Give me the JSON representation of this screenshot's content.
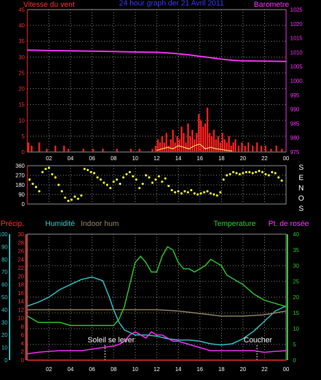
{
  "chart_data": [
    {
      "type": "line",
      "title": "24 hour graph der  21 Avril 2011",
      "left_label": "Vitesse du vent",
      "right_label": "Barometre",
      "colors": {
        "left": "#ff3030",
        "title": "#3a3aff",
        "right": "#ff33ff",
        "grid": "#9a9a9a"
      },
      "x_ticks": [
        "02",
        "04",
        "06",
        "08",
        "10",
        "12",
        "14",
        "16",
        "18",
        "20",
        "22",
        "00"
      ],
      "y_left_ticks": [
        0,
        5,
        10,
        15,
        20,
        25,
        30,
        35,
        40,
        45
      ],
      "y_left_lim": [
        0,
        45
      ],
      "y_right_ticks": [
        975,
        980,
        985,
        990,
        995,
        1000,
        1005,
        1010,
        1015,
        1020,
        1025
      ],
      "y_right_lim": [
        975,
        1025
      ],
      "series": [
        {
          "name": "Barometre",
          "axis": "right",
          "color": "#ff33ff",
          "x": [
            0,
            2,
            4,
            6,
            8,
            10,
            12,
            13,
            14,
            15,
            16,
            17,
            18,
            19,
            20,
            22,
            24
          ],
          "y": [
            1010.8,
            1010.6,
            1010.5,
            1010.4,
            1010.3,
            1010.1,
            1010.0,
            1009.8,
            1009.5,
            1009.1,
            1008.6,
            1008.1,
            1007.6,
            1007.2,
            1007.0,
            1006.9,
            1006.8
          ]
        },
        {
          "name": "Vitesse du vent",
          "axis": "left",
          "color": "#ff2020",
          "style": "bars",
          "x": [
            0.1,
            0.4,
            1.1,
            1.8,
            2.6,
            3.4,
            3.8,
            5.2,
            6.1,
            7.0,
            8.3,
            9.6,
            10.4,
            11.6,
            11.9,
            12.1,
            12.3,
            12.5,
            12.7,
            12.9,
            13.1,
            13.3,
            13.5,
            13.7,
            13.9,
            14.1,
            14.3,
            14.5,
            14.7,
            14.9,
            15.1,
            15.3,
            15.5,
            15.7,
            15.9,
            16.1,
            16.3,
            16.5,
            16.7,
            16.9,
            17.1,
            17.3,
            17.5,
            17.7,
            17.9,
            18.1,
            18.3,
            18.5,
            18.7,
            18.9,
            19.1,
            19.3,
            19.6,
            19.9,
            20.2,
            20.5,
            20.9,
            21.3,
            21.7,
            22.1,
            22.6,
            23.1,
            23.6
          ],
          "y": [
            3,
            2,
            3,
            1,
            2,
            2,
            1,
            1,
            1,
            1,
            1,
            1,
            1,
            1,
            2,
            4,
            3,
            5,
            3,
            6,
            2,
            4,
            7,
            3,
            5,
            4,
            8,
            6,
            3,
            9,
            5,
            7,
            4,
            6,
            12,
            10,
            8,
            9,
            14,
            6,
            5,
            7,
            4,
            5,
            3,
            6,
            4,
            3,
            5,
            2,
            3,
            4,
            2,
            3,
            2,
            3,
            2,
            3,
            2,
            2,
            1,
            2,
            1
          ]
        },
        {
          "name": "Rafales",
          "axis": "left",
          "color": "#ffff66",
          "x": [
            12.0,
            12.5,
            13.0,
            13.5,
            14.0,
            14.5,
            15.0,
            15.5,
            16.0,
            16.5,
            17.0,
            17.5,
            18.0,
            18.5,
            19.0
          ],
          "y": [
            0.5,
            1.0,
            1.5,
            1.0,
            2.0,
            1.5,
            1.0,
            2.0,
            2.5,
            1.0,
            1.5,
            1.0,
            0.8,
            0.5,
            0.3
          ]
        }
      ]
    },
    {
      "type": "scatter",
      "right_label": [
        "S",
        "E",
        "N",
        "O",
        "S"
      ],
      "colors": {
        "points": "#ffff33",
        "axis": "#ff3030",
        "grid": "#9a9a9a"
      },
      "x_ticks": [
        "02",
        "04",
        "06",
        "08",
        "10",
        "12",
        "14",
        "16",
        "18",
        "20",
        "22",
        "00"
      ],
      "y_ticks": [
        0,
        90,
        180,
        270,
        360
      ],
      "y_lim": [
        0,
        360
      ],
      "series": [
        {
          "name": "direction",
          "color": "#ffff33",
          "x": [
            0.2,
            0.5,
            0.8,
            1.1,
            1.4,
            1.7,
            2.0,
            2.3,
            2.6,
            2.9,
            3.2,
            3.5,
            3.8,
            4.1,
            4.4,
            4.7,
            5.0,
            5.3,
            5.6,
            5.9,
            6.2,
            6.5,
            6.8,
            7.1,
            7.4,
            7.7,
            8.0,
            8.3,
            8.6,
            8.9,
            9.2,
            9.5,
            9.8,
            10.1,
            10.4,
            10.7,
            11.0,
            11.3,
            11.6,
            11.9,
            12.2,
            12.5,
            12.8,
            13.1,
            13.4,
            13.7,
            14.0,
            14.3,
            14.6,
            14.9,
            15.2,
            15.5,
            15.8,
            16.1,
            16.4,
            16.7,
            17.0,
            17.3,
            17.6,
            17.9,
            18.2,
            18.5,
            18.8,
            19.1,
            19.4,
            19.7,
            20.0,
            20.3,
            20.6,
            20.9,
            21.2,
            21.5,
            21.8,
            22.1,
            22.4,
            22.7,
            23.0,
            23.3,
            23.6
          ],
          "y": [
            230,
            190,
            160,
            120,
            300,
            330,
            340,
            280,
            250,
            180,
            120,
            60,
            30,
            40,
            70,
            50,
            80,
            330,
            320,
            300,
            290,
            250,
            230,
            200,
            180,
            150,
            210,
            230,
            190,
            250,
            280,
            300,
            260,
            230,
            150,
            190,
            270,
            250,
            200,
            230,
            260,
            210,
            240,
            170,
            130,
            110,
            120,
            100,
            120,
            110,
            130,
            100,
            90,
            100,
            110,
            120,
            100,
            90,
            80,
            110,
            230,
            270,
            280,
            300,
            290,
            280,
            290,
            300,
            300,
            290,
            300,
            310,
            300,
            280,
            270,
            300,
            290,
            250,
            220
          ]
        }
      ]
    },
    {
      "type": "line",
      "labels": {
        "precip": "Précip.",
        "humidity": "Humidité",
        "indoor_hum": "Indoor hum",
        "temperature": "Temperature",
        "dew_point": "Pt. de rosée"
      },
      "colors": {
        "precip": "#ff3030",
        "humidity": "#33cccc",
        "indoor_hum": "#998866",
        "temperature": "#33cc33",
        "dew_point": "#ff33ff",
        "grid": "#9a9a9a"
      },
      "annotations": {
        "sunrise": "Soleil se lever",
        "sunset": "Coucher"
      },
      "annotation_x": {
        "sunrise": 7.2,
        "sunset": 21.3
      },
      "x_ticks": [
        "02",
        "04",
        "06",
        "08",
        "10",
        "12",
        "14",
        "16",
        "18",
        "20",
        "22",
        "00"
      ],
      "y_humidity_ticks": [
        0,
        10,
        20,
        30,
        40,
        50,
        60,
        70,
        80,
        90,
        100
      ],
      "y_precip_ticks": [
        0,
        2,
        4,
        6,
        8,
        10,
        12,
        14,
        16,
        18,
        20,
        22,
        24,
        26,
        28,
        30
      ],
      "y_temp_ticks": [
        0,
        5,
        10,
        15,
        20,
        25,
        30,
        35,
        40
      ],
      "y_temp_lim": [
        0,
        40
      ],
      "y_humidity_lim": [
        0,
        100
      ],
      "y_precip_lim": [
        0,
        30
      ],
      "series": [
        {
          "name": "Humidité",
          "axis": "humidity",
          "color": "#33cccc",
          "x": [
            0,
            1,
            2,
            3,
            4,
            5,
            6,
            7,
            7.6,
            8,
            8.5,
            9,
            9.5,
            10,
            11,
            12,
            13,
            14,
            15,
            16,
            17,
            18,
            19,
            20,
            21,
            22,
            23,
            24
          ],
          "y": [
            43,
            46,
            50,
            56,
            60,
            64,
            66,
            63,
            50,
            40,
            30,
            24,
            22,
            20,
            20,
            19,
            17,
            16,
            16,
            15,
            13,
            12,
            13,
            17,
            23,
            31,
            39,
            43
          ]
        },
        {
          "name": "Indoor hum",
          "axis": "humidity",
          "color": "#998866",
          "x": [
            0,
            2,
            4,
            6,
            8,
            10,
            12,
            14,
            16,
            18,
            20,
            22,
            24
          ],
          "y": [
            40,
            40,
            40,
            40,
            40,
            40,
            40,
            39,
            37,
            35,
            35,
            36,
            39
          ]
        },
        {
          "name": "Temperature",
          "axis": "temp",
          "color": "#33cc33",
          "x": [
            0,
            1,
            2,
            3,
            4,
            5,
            6,
            7,
            8,
            8.5,
            9,
            9.5,
            10,
            10.5,
            11,
            11.5,
            12,
            12.5,
            13,
            13.5,
            14,
            14.5,
            15,
            15.5,
            16,
            16.5,
            17,
            17.5,
            18,
            18.5,
            19,
            19.5,
            20,
            21,
            22,
            23,
            24
          ],
          "y": [
            14,
            12,
            12,
            12,
            11,
            11,
            11,
            11,
            11,
            13,
            17,
            24,
            31,
            33,
            31,
            28,
            28,
            33,
            36,
            35,
            31,
            29,
            29,
            28,
            29,
            30,
            32,
            31,
            30,
            27,
            26,
            25,
            24,
            21,
            19,
            18,
            17
          ]
        },
        {
          "name": "Pt. de rosée",
          "axis": "temp",
          "color": "#ff33ff",
          "x": [
            0,
            1,
            2,
            3,
            4,
            5,
            6,
            7,
            8,
            8.5,
            9,
            9.5,
            10,
            10.5,
            11,
            11.5,
            12,
            12.5,
            13,
            13.5,
            14,
            15,
            16,
            17,
            18,
            19,
            20,
            21,
            22,
            23,
            24
          ],
          "y": [
            2,
            2.5,
            2.8,
            3,
            3,
            3,
            3.5,
            4,
            4.5,
            5,
            6,
            8,
            9,
            8,
            7,
            9,
            8,
            8,
            7,
            6,
            6,
            5,
            4,
            3,
            3,
            3,
            3,
            3,
            2.5,
            2.8,
            3
          ]
        },
        {
          "name": "Précip.",
          "axis": "precip",
          "color": "#ff3030",
          "x": [
            0,
            24
          ],
          "y": [
            0,
            0
          ]
        }
      ]
    }
  ]
}
